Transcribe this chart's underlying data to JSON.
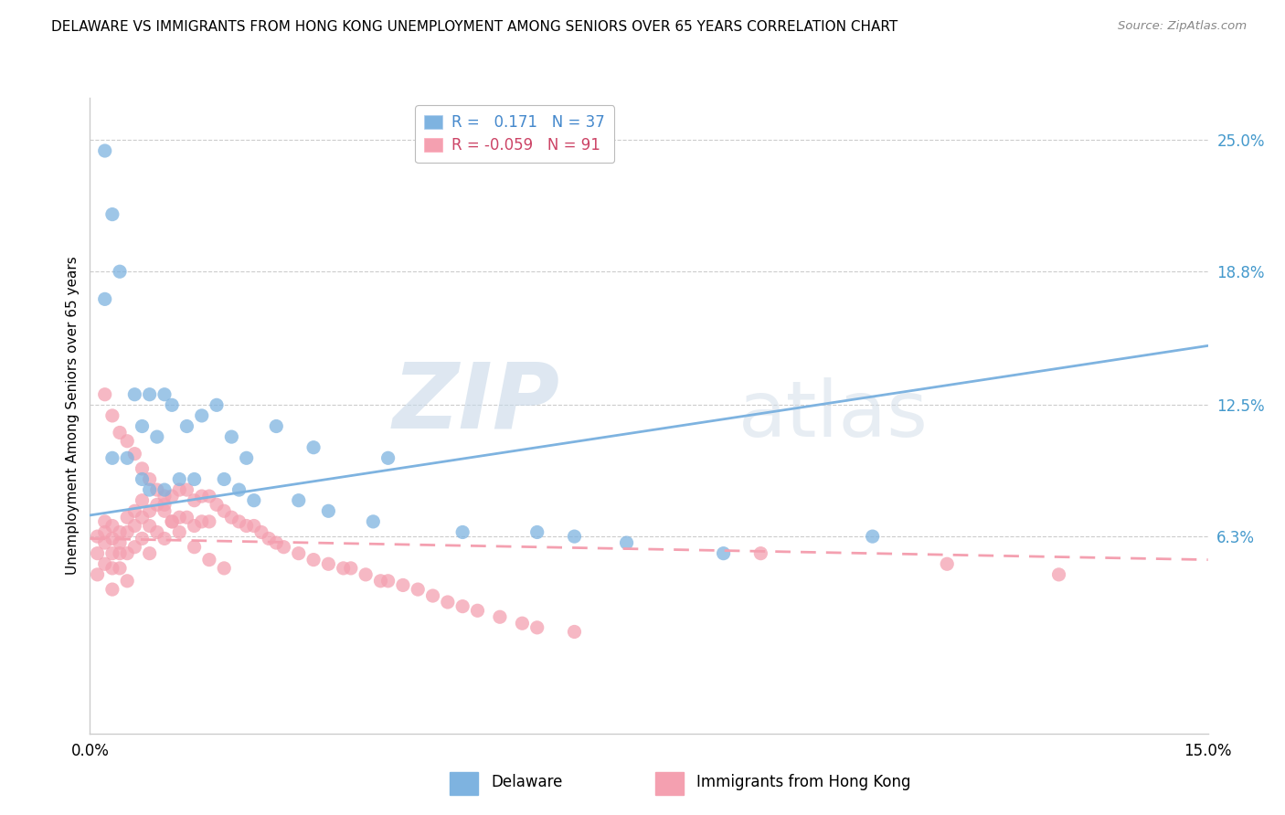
{
  "title": "DELAWARE VS IMMIGRANTS FROM HONG KONG UNEMPLOYMENT AMONG SENIORS OVER 65 YEARS CORRELATION CHART",
  "source": "Source: ZipAtlas.com",
  "ylabel": "Unemployment Among Seniors over 65 years",
  "xlim": [
    0.0,
    0.15
  ],
  "ylim": [
    -0.03,
    0.27
  ],
  "ytick_positions": [
    0.063,
    0.125,
    0.188,
    0.25
  ],
  "ytick_labels": [
    "6.3%",
    "12.5%",
    "18.8%",
    "25.0%"
  ],
  "xtick_positions": [
    0.0,
    0.15
  ],
  "xtick_labels": [
    "0.0%",
    "15.0%"
  ],
  "delaware_color": "#7EB3E0",
  "hk_color": "#F4A0B0",
  "delaware_R": 0.171,
  "delaware_N": 37,
  "hk_R": -0.059,
  "hk_N": 91,
  "watermark_zip": "ZIP",
  "watermark_atlas": "atlas",
  "del_trend_start_y": 0.073,
  "del_trend_end_y": 0.153,
  "hk_trend_start_y": 0.062,
  "hk_trend_end_y": 0.052,
  "del_x": [
    0.002,
    0.003,
    0.004,
    0.006,
    0.007,
    0.008,
    0.009,
    0.01,
    0.011,
    0.013,
    0.015,
    0.017,
    0.019,
    0.021,
    0.025,
    0.03,
    0.04,
    0.065,
    0.003,
    0.005,
    0.007,
    0.008,
    0.01,
    0.012,
    0.014,
    0.018,
    0.02,
    0.022,
    0.028,
    0.032,
    0.038,
    0.05,
    0.06,
    0.072,
    0.085,
    0.105,
    0.002
  ],
  "del_y": [
    0.245,
    0.215,
    0.188,
    0.13,
    0.115,
    0.13,
    0.11,
    0.13,
    0.125,
    0.115,
    0.12,
    0.125,
    0.11,
    0.1,
    0.115,
    0.105,
    0.1,
    0.063,
    0.1,
    0.1,
    0.09,
    0.085,
    0.085,
    0.09,
    0.09,
    0.09,
    0.085,
    0.08,
    0.08,
    0.075,
    0.07,
    0.065,
    0.065,
    0.06,
    0.055,
    0.063,
    0.175
  ],
  "hk_x": [
    0.001,
    0.001,
    0.001,
    0.002,
    0.002,
    0.002,
    0.002,
    0.003,
    0.003,
    0.003,
    0.003,
    0.003,
    0.004,
    0.004,
    0.004,
    0.004,
    0.005,
    0.005,
    0.005,
    0.005,
    0.006,
    0.006,
    0.006,
    0.007,
    0.007,
    0.007,
    0.008,
    0.008,
    0.008,
    0.009,
    0.009,
    0.01,
    0.01,
    0.01,
    0.011,
    0.011,
    0.012,
    0.012,
    0.013,
    0.013,
    0.014,
    0.014,
    0.015,
    0.015,
    0.016,
    0.016,
    0.017,
    0.018,
    0.019,
    0.02,
    0.021,
    0.022,
    0.023,
    0.024,
    0.025,
    0.026,
    0.028,
    0.03,
    0.032,
    0.034,
    0.035,
    0.037,
    0.039,
    0.04,
    0.042,
    0.044,
    0.046,
    0.048,
    0.05,
    0.052,
    0.055,
    0.058,
    0.06,
    0.065,
    0.002,
    0.003,
    0.004,
    0.005,
    0.006,
    0.007,
    0.008,
    0.009,
    0.01,
    0.011,
    0.012,
    0.014,
    0.016,
    0.018,
    0.09,
    0.115,
    0.13
  ],
  "hk_y": [
    0.063,
    0.055,
    0.045,
    0.07,
    0.065,
    0.06,
    0.05,
    0.068,
    0.062,
    0.055,
    0.048,
    0.038,
    0.065,
    0.06,
    0.055,
    0.048,
    0.072,
    0.065,
    0.055,
    0.042,
    0.075,
    0.068,
    0.058,
    0.08,
    0.072,
    0.062,
    0.075,
    0.068,
    0.055,
    0.078,
    0.065,
    0.082,
    0.075,
    0.062,
    0.082,
    0.07,
    0.085,
    0.072,
    0.085,
    0.072,
    0.08,
    0.068,
    0.082,
    0.07,
    0.082,
    0.07,
    0.078,
    0.075,
    0.072,
    0.07,
    0.068,
    0.068,
    0.065,
    0.062,
    0.06,
    0.058,
    0.055,
    0.052,
    0.05,
    0.048,
    0.048,
    0.045,
    0.042,
    0.042,
    0.04,
    0.038,
    0.035,
    0.032,
    0.03,
    0.028,
    0.025,
    0.022,
    0.02,
    0.018,
    0.13,
    0.12,
    0.112,
    0.108,
    0.102,
    0.095,
    0.09,
    0.085,
    0.078,
    0.07,
    0.065,
    0.058,
    0.052,
    0.048,
    0.055,
    0.05,
    0.045
  ]
}
